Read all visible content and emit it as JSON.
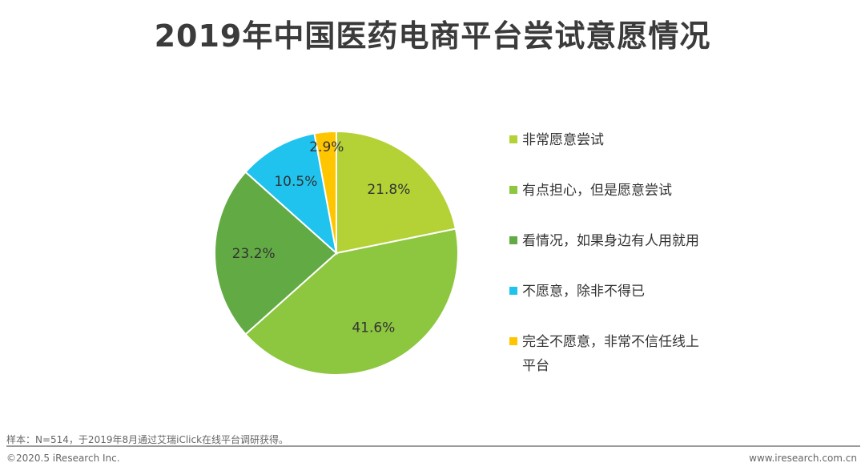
{
  "chart_data": {
    "type": "pie",
    "title": "2019年中国医药电商平台尝试意愿情况",
    "slices": [
      {
        "name": "非常愿意尝试",
        "value": 21.8,
        "label": "21.8%",
        "color": "#b4d236"
      },
      {
        "name": "有点担心，但是愿意尝试",
        "value": 41.6,
        "label": "41.6%",
        "color": "#8dc63f"
      },
      {
        "name": "看情况，如果身边有人用就用",
        "value": 23.2,
        "label": "23.2%",
        "color": "#62ab44"
      },
      {
        "name": "不愿意，除非不得已",
        "value": 10.5,
        "label": "10.5%",
        "color": "#1fc3ee"
      },
      {
        "name": "完全不愿意，非常不信任线上平台",
        "value": 2.9,
        "label": "2.9%",
        "color": "#ffc600"
      }
    ],
    "legend_position": "right",
    "start_angle": "12 o'clock",
    "direction": "clockwise"
  },
  "footer": {
    "note": "样本：N=514，于2019年8月通过艾瑞iClick在线平台调研获得。",
    "copyright": "©2020.5 iResearch Inc.",
    "website": "www.iresearch.com.cn"
  }
}
